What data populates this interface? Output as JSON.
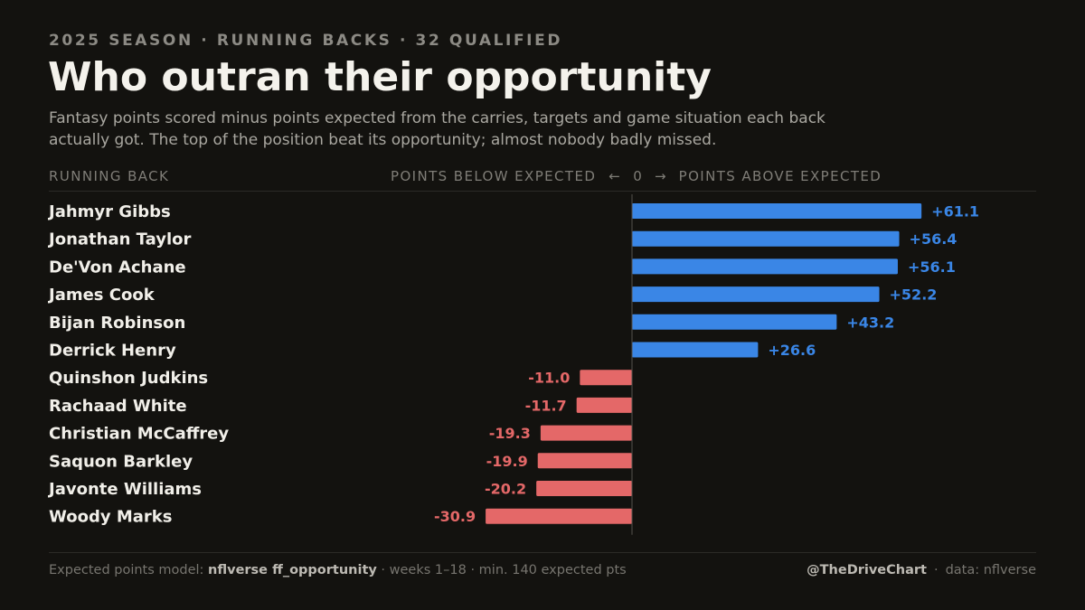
{
  "header": {
    "kicker": "2025 SEASON · RUNNING BACKS · 32 QUALIFIED",
    "title": "Who outran their opportunity",
    "subtitle": "Fantasy points scored minus points expected from the carries, targets and game situation each back actually got. The top of the position beat its opportunity; almost nobody badly missed."
  },
  "columns": {
    "left": "RUNNING BACK",
    "axis_below": "POINTS BELOW EXPECTED",
    "axis_left_arrow": "←",
    "axis_zero": "0",
    "axis_right_arrow": "→",
    "axis_above": "POINTS ABOVE EXPECTED"
  },
  "chart_data": {
    "type": "bar",
    "orientation": "horizontal",
    "categories": [
      "Jahmyr Gibbs",
      "Jonathan Taylor",
      "De'Von Achane",
      "James Cook",
      "Bijan Robinson",
      "Derrick Henry",
      "Quinshon Judkins",
      "Rachaad White",
      "Christian McCaffrey",
      "Saquon Barkley",
      "Javonte Williams",
      "Woody Marks"
    ],
    "values": [
      61.1,
      56.4,
      56.1,
      52.2,
      43.2,
      26.6,
      -11.0,
      -11.7,
      -19.3,
      -19.9,
      -20.2,
      -30.9
    ],
    "labels": [
      "+61.1",
      "+56.4",
      "+56.1",
      "+52.2",
      "+43.2",
      "+26.6",
      "-11.0",
      "-11.7",
      "-19.3",
      "-19.9",
      "-20.2",
      "-30.9"
    ],
    "xlim": [
      -31,
      62
    ],
    "colors": {
      "positive": "#3a86e6",
      "negative": "#e46868",
      "zero_line": "#55534e"
    },
    "grid": false
  },
  "footer": {
    "model_prefix": "Expected points model: ",
    "model_name": "nflverse ff_opportunity",
    "model_suffix": " · weeks 1–18 · min. 140 expected pts",
    "handle": "@TheDriveChart",
    "separator": "·",
    "source": "data: nflverse"
  }
}
